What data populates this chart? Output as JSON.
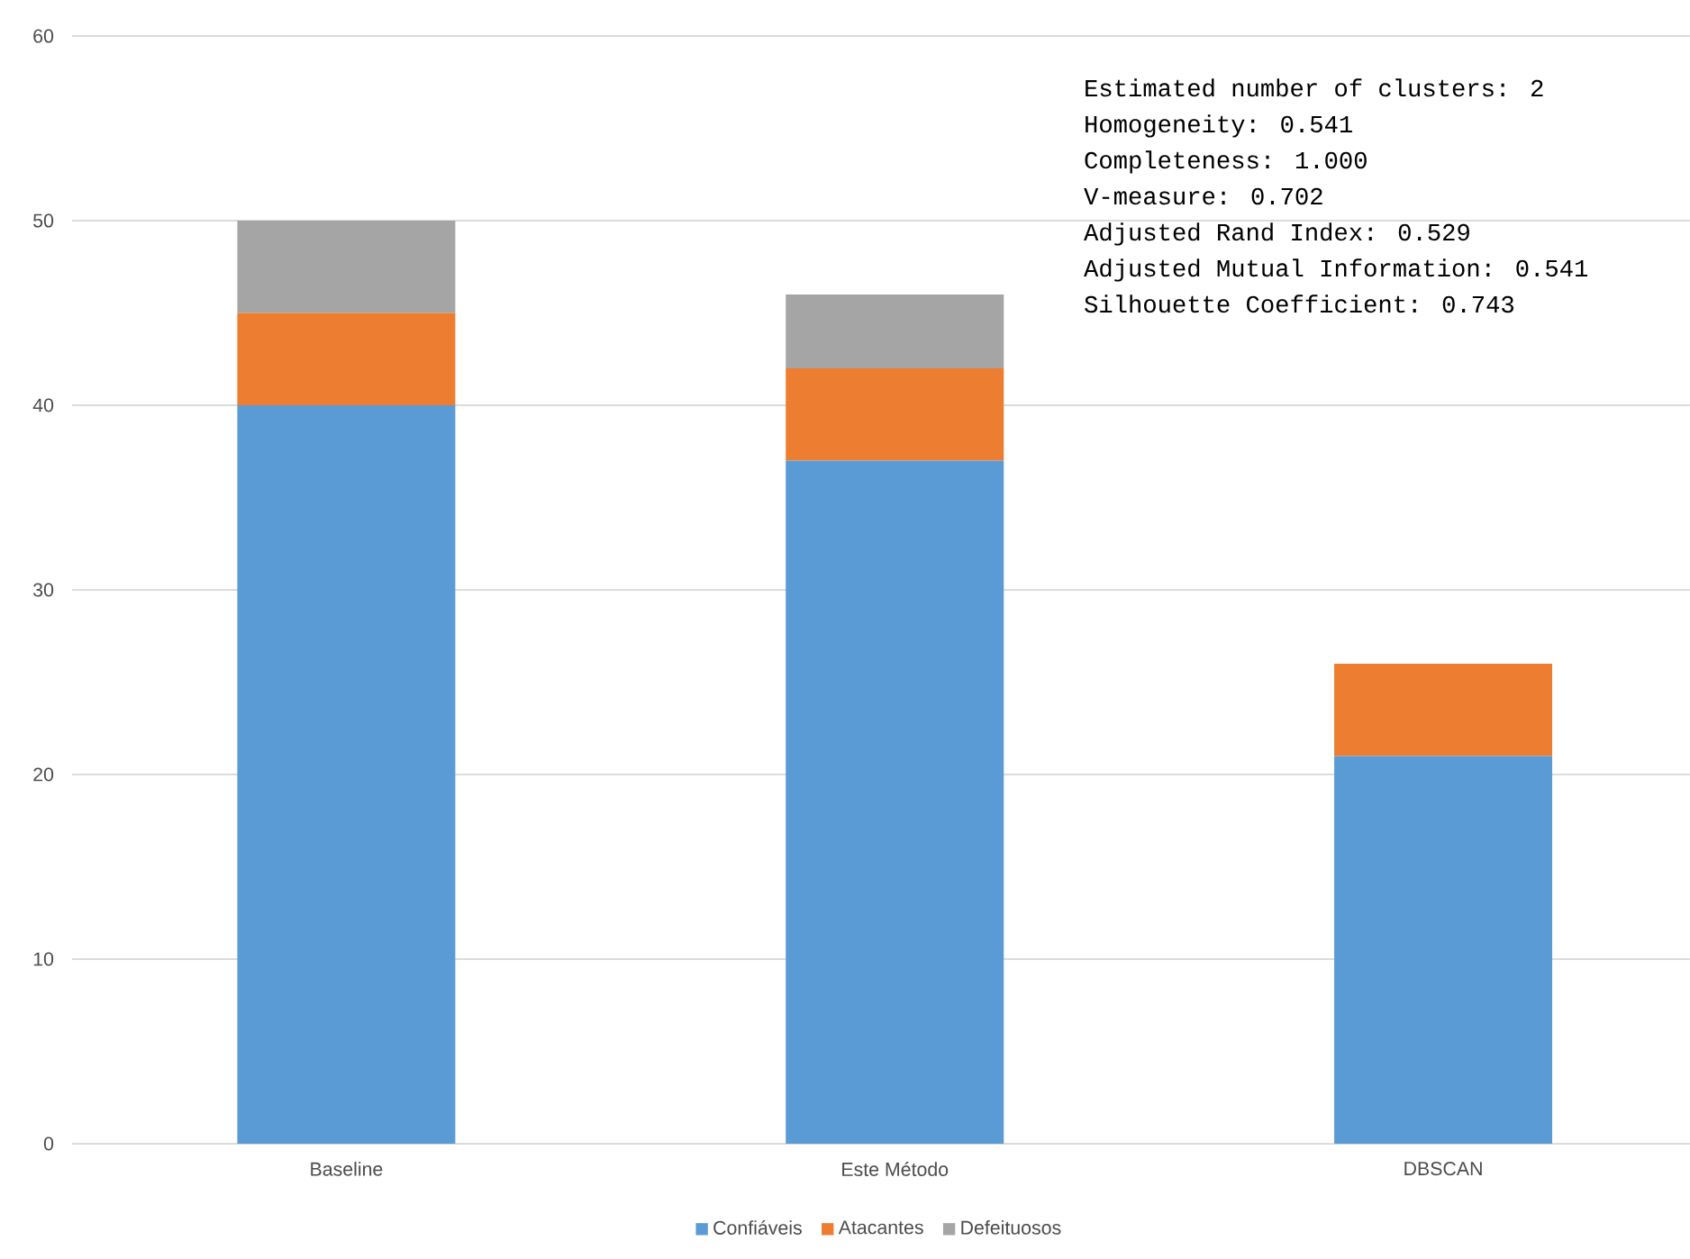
{
  "chart_data": {
    "type": "bar",
    "stacked": true,
    "categories": [
      "Baseline",
      "Este Método",
      "DBSCAN"
    ],
    "series": [
      {
        "name": "Confiáveis",
        "color": "#5b9bd5",
        "values": [
          40,
          37,
          21
        ]
      },
      {
        "name": "Atacantes",
        "color": "#ed7d31",
        "values": [
          5,
          5,
          5
        ]
      },
      {
        "name": "Defeituosos",
        "color": "#a5a5a5",
        "values": [
          5,
          4,
          0
        ]
      }
    ],
    "ylim": [
      0,
      60
    ],
    "yticks": [
      0,
      10,
      20,
      30,
      40,
      50,
      60
    ],
    "grid": "y",
    "legend": "bottom",
    "annotations": [
      "Estimated number of clusters: 2",
      "Homogeneity: 0.541",
      "Completeness: 1.000",
      "V-measure: 0.702",
      "Adjusted Rand Index: 0.529",
      "Adjusted Mutual Information: 0.541",
      "Silhouette Coefficient: 0.743"
    ]
  }
}
